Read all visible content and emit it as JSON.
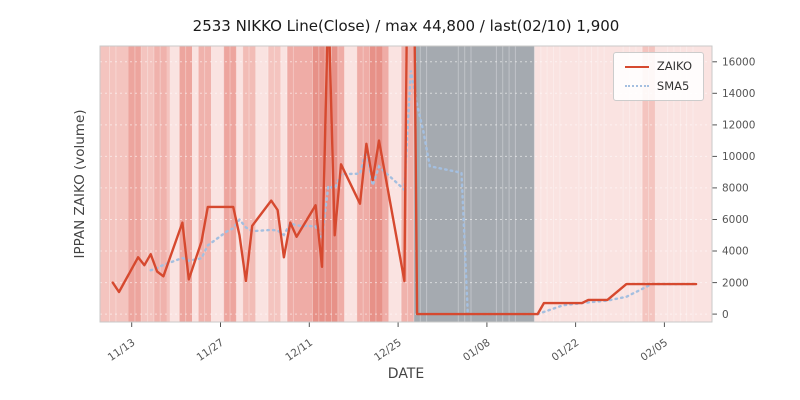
{
  "title": "2533 NIKKO Line(Close) / max 44,800 / last(02/10) 1,900",
  "axes": {
    "x_label": "DATE",
    "y_label": "IPPAN ZAIKO (volume)"
  },
  "legend": {
    "items": [
      {
        "label": "ZAIKO",
        "style": "solid",
        "color": "#d6492f"
      },
      {
        "label": "SMA5",
        "style": "dotted",
        "color": "#a4bfe0"
      }
    ]
  },
  "chart_data": {
    "type": "line",
    "title": "2533 NIKKO Line(Close) / max 44,800 / last(02/10) 1,900",
    "xlabel": "DATE",
    "ylabel": "IPPAN ZAIKO (volume)",
    "ylim": [
      -500,
      17000
    ],
    "xlim": [
      -2,
      94.5
    ],
    "yticks": [
      0,
      2000,
      4000,
      6000,
      8000,
      10000,
      12000,
      14000,
      16000
    ],
    "xticks": [
      {
        "label": "11/13",
        "offset": 3
      },
      {
        "label": "11/27",
        "offset": 17
      },
      {
        "label": "12/11",
        "offset": 31
      },
      {
        "label": "12/25",
        "offset": 45
      },
      {
        "label": "01/08",
        "offset": 59
      },
      {
        "label": "01/22",
        "offset": 73
      },
      {
        "label": "02/05",
        "offset": 87
      }
    ],
    "dates": [
      "11/10",
      "11/11",
      "11/14",
      "11/15",
      "11/16",
      "11/17",
      "11/18",
      "11/21",
      "11/22",
      "11/24",
      "11/25",
      "11/28",
      "11/29",
      "11/30",
      "12/01",
      "12/02",
      "12/05",
      "12/06",
      "12/07",
      "12/08",
      "12/09",
      "12/12",
      "12/13",
      "12/14",
      "12/15",
      "12/16",
      "12/19",
      "12/20",
      "12/21",
      "12/22",
      "12/26",
      "12/27",
      "12/28",
      "12/29",
      "12/30",
      "01/04",
      "01/05",
      "01/06",
      "01/10",
      "01/11",
      "01/12",
      "01/13",
      "01/16",
      "01/17",
      "01/18",
      "01/19",
      "01/20",
      "01/23",
      "01/24",
      "01/25",
      "01/26",
      "01/27",
      "01/30",
      "01/31",
      "02/01",
      "02/02",
      "02/03",
      "02/06",
      "02/07",
      "02/08",
      "02/09",
      "02/10"
    ],
    "offsets": [
      0,
      1,
      4,
      5,
      6,
      7,
      8,
      11,
      12,
      14,
      15,
      18,
      19,
      20,
      21,
      22,
      25,
      26,
      27,
      28,
      29,
      32,
      33,
      34,
      35,
      36,
      39,
      40,
      41,
      42,
      46,
      47,
      48,
      49,
      50,
      55,
      56,
      57,
      61,
      62,
      63,
      64,
      67,
      68,
      69,
      70,
      71,
      74,
      75,
      76,
      77,
      78,
      81,
      82,
      83,
      84,
      85,
      88,
      89,
      90,
      91,
      92
    ],
    "series": [
      {
        "name": "ZAIKO",
        "color": "#d6492f",
        "style": "solid",
        "values": [
          2000,
          1400,
          3600,
          3100,
          3800,
          2700,
          2400,
          5800,
          2200,
          4600,
          6800,
          6800,
          6800,
          5000,
          2100,
          5600,
          7200,
          6600,
          3600,
          5800,
          4900,
          6900,
          3000,
          20000,
          5000,
          9500,
          7000,
          10800,
          8500,
          11000,
          2100,
          44800,
          0,
          0,
          0,
          0,
          0,
          0,
          0,
          0,
          0,
          0,
          0,
          700,
          700,
          700,
          700,
          700,
          900,
          900,
          900,
          900,
          1900,
          1900,
          1900,
          1900,
          1900,
          1900,
          1900,
          1900,
          1900,
          1900
        ]
      },
      {
        "name": "SMA5",
        "color": "#a4bfe0",
        "style": "dotted",
        "derived_from": "ZAIKO",
        "window": 5
      }
    ],
    "annotations": {
      "max": 44800,
      "last_date": "02/10",
      "last_value": 1900
    },
    "background": {
      "plot_default": "#fae3e1",
      "grid_color": "#ffffff",
      "bands": [
        {
          "from": -2,
          "to": 9,
          "color": "#f4c4bf"
        },
        {
          "from": 2.5,
          "to": 4.5,
          "color": "#eda59e"
        },
        {
          "from": 6.5,
          "to": 8.5,
          "color": "#f0b2ac"
        },
        {
          "from": 10.5,
          "to": 12.5,
          "color": "#eda59e"
        },
        {
          "from": 13.5,
          "to": 15.5,
          "color": "#f0b2ac"
        },
        {
          "from": 17.5,
          "to": 19.5,
          "color": "#eda59e"
        },
        {
          "from": 20.5,
          "to": 22.5,
          "color": "#f2bcb6"
        },
        {
          "from": 24.5,
          "to": 26.5,
          "color": "#f4c4bf"
        },
        {
          "from": 27.5,
          "to": 36.5,
          "color": "#efaca6"
        },
        {
          "from": 31.5,
          "to": 35.5,
          "color": "#e79188"
        },
        {
          "from": 38.5,
          "to": 43.5,
          "color": "#efaca6"
        },
        {
          "from": 40.5,
          "to": 42.5,
          "color": "#e79188"
        },
        {
          "from": 45.5,
          "to": 47.5,
          "color": "#f0b2ac"
        },
        {
          "from": 47.5,
          "to": 66.5,
          "color": "#a5aab0"
        },
        {
          "from": 83.5,
          "to": 85.5,
          "color": "#f4c4bf"
        }
      ]
    }
  }
}
